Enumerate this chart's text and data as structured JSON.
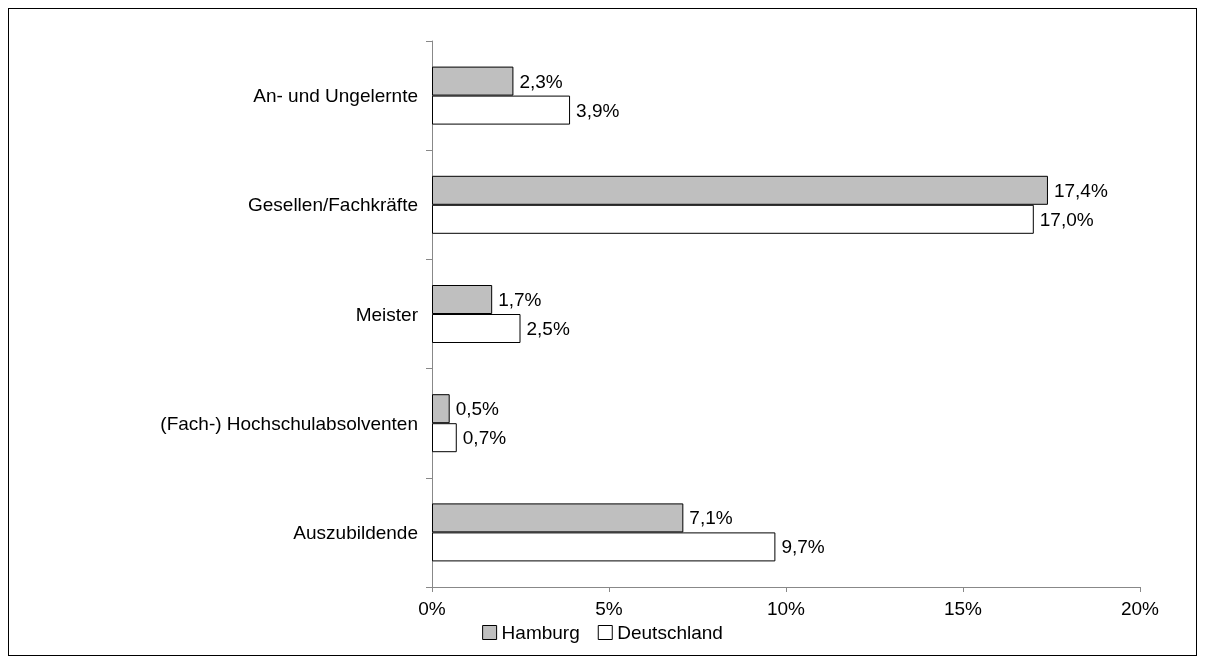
{
  "chart_data": {
    "type": "bar",
    "orientation": "horizontal",
    "categories": [
      "An- und Ungelernte",
      "Gesellen/Fachkräfte",
      "Meister",
      "(Fach-) Hochschulabsolventen",
      "Auszubildende"
    ],
    "series": [
      {
        "name": "Hamburg",
        "color": "#bfbfbf",
        "values": [
          2.3,
          17.4,
          1.7,
          0.5,
          7.1
        ],
        "value_labels": [
          "2,3%",
          "17,4%",
          "1,7%",
          "0,5%",
          "7,1%"
        ]
      },
      {
        "name": "Deutschland",
        "color": "#ffffff",
        "values": [
          3.9,
          17.0,
          2.5,
          0.7,
          9.7
        ],
        "value_labels": [
          "3,9%",
          "17,0%",
          "2,5%",
          "0,7%",
          "9,7%"
        ]
      }
    ],
    "xlim": [
      0,
      20
    ],
    "xticks": [
      {
        "value": 0,
        "label": "0%"
      },
      {
        "value": 5,
        "label": "5%"
      },
      {
        "value": 10,
        "label": "10%"
      },
      {
        "value": 15,
        "label": "15%"
      },
      {
        "value": 20,
        "label": "20%"
      }
    ],
    "grid": false,
    "legend": "bottom"
  }
}
